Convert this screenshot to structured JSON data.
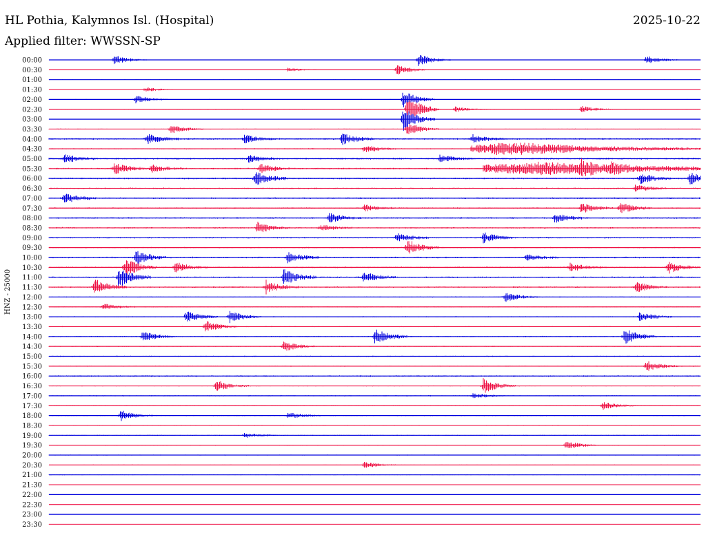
{
  "header": {
    "station": "HL Pothia, Kalymnos Isl. (Hospital)",
    "date": "2025-10-22",
    "filter_label": "Applied filter: WWSSN-SP"
  },
  "channel_label": "HNZ - 25000",
  "colors": {
    "trace_a": "#0000dd",
    "trace_b": "#ee1144",
    "background": "#ffffff",
    "text": "#000000"
  },
  "chart_data": {
    "type": "line",
    "title": "HL Pothia, Kalymnos Isl. (Hospital)",
    "subtitle": "Applied filter: WWSSN-SP",
    "ylabel": "HNZ - 25000",
    "xlabel": "",
    "date": "2025-10-22",
    "line_interval_minutes": 30,
    "row_labels": [
      "00:00",
      "00:30",
      "01:00",
      "01:30",
      "02:00",
      "02:30",
      "03:00",
      "03:30",
      "04:00",
      "04:30",
      "05:00",
      "05:30",
      "06:00",
      "06:30",
      "07:00",
      "07:30",
      "08:00",
      "08:30",
      "09:00",
      "09:30",
      "10:00",
      "10:30",
      "11:00",
      "11:30",
      "12:00",
      "12:30",
      "13:00",
      "13:30",
      "14:00",
      "14:30",
      "15:00",
      "15:30",
      "16:00",
      "16:30",
      "17:00",
      "17:30",
      "18:00",
      "18:30",
      "19:00",
      "19:30",
      "20:00",
      "20:30",
      "21:00",
      "21:30",
      "22:00",
      "22:30",
      "23:00",
      "23:30"
    ],
    "series_colors": [
      "#0000dd",
      "#ee1144"
    ],
    "noise_level": [
      0.3,
      0.2,
      0.25,
      0.15,
      0.35,
      0.35,
      0.3,
      0.5,
      0.9,
      0.7,
      0.9,
      0.9,
      0.9,
      0.8,
      0.9,
      0.8,
      0.9,
      0.8,
      0.8,
      0.7,
      0.9,
      0.8,
      0.9,
      0.8,
      0.6,
      0.6,
      0.6,
      0.5,
      0.7,
      0.6,
      0.6,
      0.6,
      0.8,
      0.5,
      0.6,
      0.5,
      0.6,
      0.5,
      0.5,
      0.4,
      0.5,
      0.4,
      0.4,
      0.3,
      0.3,
      0.2,
      0.2,
      0.2
    ],
    "events": [
      {
        "row": 0,
        "minute": 3.0,
        "amp": 7
      },
      {
        "row": 0,
        "minute": 17.0,
        "amp": 9
      },
      {
        "row": 0,
        "minute": 27.5,
        "amp": 6
      },
      {
        "row": 1,
        "minute": 16.0,
        "amp": 8
      },
      {
        "row": 1,
        "minute": 11.0,
        "amp": 3
      },
      {
        "row": 3,
        "minute": 4.4,
        "amp": 4
      },
      {
        "row": 4,
        "minute": 4.0,
        "amp": 6
      },
      {
        "row": 4,
        "minute": 16.3,
        "amp": 14
      },
      {
        "row": 5,
        "minute": 16.5,
        "amp": 22
      },
      {
        "row": 5,
        "minute": 18.7,
        "amp": 4
      },
      {
        "row": 5,
        "minute": 24.5,
        "amp": 5
      },
      {
        "row": 6,
        "minute": 16.3,
        "amp": 18
      },
      {
        "row": 7,
        "minute": 5.6,
        "amp": 7
      },
      {
        "row": 7,
        "minute": 16.5,
        "amp": 10
      },
      {
        "row": 8,
        "minute": 4.5,
        "amp": 8
      },
      {
        "row": 8,
        "minute": 9.0,
        "amp": 6
      },
      {
        "row": 8,
        "minute": 13.5,
        "amp": 9
      },
      {
        "row": 8,
        "minute": 19.5,
        "amp": 6
      },
      {
        "row": 9,
        "minute": 14.5,
        "amp": 6
      },
      {
        "row": 9,
        "minute": 20.5,
        "amp": 9,
        "span": 4.5
      },
      {
        "row": 10,
        "minute": 0.7,
        "amp": 7
      },
      {
        "row": 10,
        "minute": 9.2,
        "amp": 6
      },
      {
        "row": 10,
        "minute": 18.0,
        "amp": 5
      },
      {
        "row": 11,
        "minute": 3.0,
        "amp": 9
      },
      {
        "row": 11,
        "minute": 4.7,
        "amp": 6
      },
      {
        "row": 11,
        "minute": 9.7,
        "amp": 7
      },
      {
        "row": 11,
        "minute": 22.5,
        "amp": 9,
        "span": 5
      },
      {
        "row": 11,
        "minute": 24.5,
        "amp": 8
      },
      {
        "row": 11,
        "minute": 25.9,
        "amp": 6
      },
      {
        "row": 12,
        "minute": 9.5,
        "amp": 11
      },
      {
        "row": 12,
        "minute": 27.2,
        "amp": 8
      },
      {
        "row": 12,
        "minute": 29.5,
        "amp": 9
      },
      {
        "row": 13,
        "minute": 27.0,
        "amp": 6
      },
      {
        "row": 14,
        "minute": 0.7,
        "amp": 8
      },
      {
        "row": 15,
        "minute": 14.5,
        "amp": 5
      },
      {
        "row": 15,
        "minute": 24.5,
        "amp": 8
      },
      {
        "row": 15,
        "minute": 26.3,
        "amp": 8
      },
      {
        "row": 16,
        "minute": 12.9,
        "amp": 7
      },
      {
        "row": 16,
        "minute": 23.3,
        "amp": 7
      },
      {
        "row": 17,
        "minute": 9.6,
        "amp": 9
      },
      {
        "row": 17,
        "minute": 12.5,
        "amp": 5
      },
      {
        "row": 18,
        "minute": 16.0,
        "amp": 7
      },
      {
        "row": 18,
        "minute": 20.0,
        "amp": 8
      },
      {
        "row": 19,
        "minute": 16.5,
        "amp": 12
      },
      {
        "row": 20,
        "minute": 4.0,
        "amp": 11
      },
      {
        "row": 20,
        "minute": 11.0,
        "amp": 8
      },
      {
        "row": 20,
        "minute": 22.0,
        "amp": 5
      },
      {
        "row": 21,
        "minute": 3.5,
        "amp": 14
      },
      {
        "row": 21,
        "minute": 5.8,
        "amp": 8
      },
      {
        "row": 21,
        "minute": 24.0,
        "amp": 7
      },
      {
        "row": 21,
        "minute": 28.5,
        "amp": 9
      },
      {
        "row": 22,
        "minute": 3.2,
        "amp": 15
      },
      {
        "row": 22,
        "minute": 10.8,
        "amp": 12
      },
      {
        "row": 22,
        "minute": 14.5,
        "amp": 8
      },
      {
        "row": 23,
        "minute": 2.1,
        "amp": 12
      },
      {
        "row": 23,
        "minute": 10.0,
        "amp": 10
      },
      {
        "row": 23,
        "minute": 27.0,
        "amp": 8
      },
      {
        "row": 24,
        "minute": 21.0,
        "amp": 7
      },
      {
        "row": 25,
        "minute": 2.5,
        "amp": 5
      },
      {
        "row": 26,
        "minute": 6.3,
        "amp": 9
      },
      {
        "row": 26,
        "minute": 8.3,
        "amp": 9
      },
      {
        "row": 26,
        "minute": 27.2,
        "amp": 7
      },
      {
        "row": 27,
        "minute": 7.2,
        "amp": 9
      },
      {
        "row": 28,
        "minute": 4.3,
        "amp": 8
      },
      {
        "row": 28,
        "minute": 15.0,
        "amp": 12
      },
      {
        "row": 28,
        "minute": 26.5,
        "amp": 12
      },
      {
        "row": 29,
        "minute": 10.8,
        "amp": 8
      },
      {
        "row": 31,
        "minute": 27.5,
        "amp": 8
      },
      {
        "row": 33,
        "minute": 7.7,
        "amp": 9
      },
      {
        "row": 33,
        "minute": 20.0,
        "amp": 11
      },
      {
        "row": 34,
        "minute": 19.5,
        "amp": 4
      },
      {
        "row": 35,
        "minute": 25.5,
        "amp": 6
      },
      {
        "row": 36,
        "minute": 3.3,
        "amp": 8
      },
      {
        "row": 36,
        "minute": 11.0,
        "amp": 5
      },
      {
        "row": 38,
        "minute": 9.0,
        "amp": 4
      },
      {
        "row": 39,
        "minute": 23.8,
        "amp": 7
      },
      {
        "row": 41,
        "minute": 14.5,
        "amp": 5
      }
    ],
    "long_events": [
      {
        "row": 9,
        "start_min": 19.4,
        "end_min": 24.1,
        "amp": 9
      },
      {
        "row": 11,
        "start_min": 20.0,
        "end_min": 25.5,
        "amp": 9
      }
    ]
  }
}
